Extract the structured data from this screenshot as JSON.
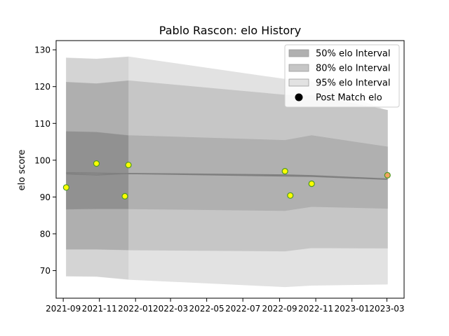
{
  "chart_data": {
    "type": "line",
    "title": "Pablo Rascon: elo History",
    "xlabel": "",
    "ylabel": "elo score",
    "xlim": [
      "2021-08-20",
      "2023-03-30"
    ],
    "ylim": [
      62.5,
      132.5
    ],
    "x_ticks": [
      "2021-09",
      "2021-11",
      "2022-01",
      "2022-03",
      "2022-05",
      "2022-07",
      "2022-09",
      "2022-11",
      "2023-01",
      "2023-03"
    ],
    "y_ticks": [
      70,
      80,
      90,
      100,
      110,
      120,
      130
    ],
    "grid": false,
    "legend_position": "top-right",
    "legend": [
      {
        "label": "50% elo Interval",
        "kind": "band",
        "color": "#b0b0b0"
      },
      {
        "label": "80% elo Interval",
        "kind": "band",
        "color": "#c6c6c6"
      },
      {
        "label": "95% elo Interval",
        "kind": "band",
        "color": "#e2e2e2"
      },
      {
        "label": "Post Match elo",
        "kind": "marker",
        "color": "#000000"
      }
    ],
    "shaded_dates": [
      "2021-09-06",
      "2021-12-20"
    ],
    "series": [
      {
        "kind": "band",
        "level": "95%",
        "color": "#e2e2e2",
        "x": [
          "2021-09-06",
          "2021-10-27",
          "2021-12-20",
          "2022-09-10",
          "2022-10-25",
          "2023-03-02"
        ],
        "lower": [
          68.5,
          68.4,
          67.6,
          65.6,
          66.0,
          66.3
        ],
        "upper": [
          127.8,
          127.5,
          128.1,
          122.0,
          121.3,
          113.4
        ]
      },
      {
        "kind": "band",
        "level": "80%",
        "color": "#c6c6c6",
        "x": [
          "2021-09-06",
          "2021-10-27",
          "2021-12-20",
          "2022-09-10",
          "2022-10-25",
          "2023-03-02"
        ],
        "lower": [
          75.8,
          75.8,
          75.6,
          75.3,
          76.2,
          76.1
        ],
        "upper": [
          121.2,
          120.8,
          121.6,
          117.7,
          117.6,
          113.6
        ]
      },
      {
        "kind": "band",
        "level": "50%",
        "color": "#b0b0b0",
        "x": [
          "2021-09-06",
          "2021-10-27",
          "2021-12-20",
          "2022-09-10",
          "2022-10-25",
          "2023-03-02"
        ],
        "lower": [
          86.7,
          86.8,
          86.8,
          86.3,
          87.4,
          86.9
        ],
        "upper": [
          107.8,
          107.6,
          106.7,
          105.4,
          106.7,
          103.6
        ]
      },
      {
        "kind": "line",
        "name": "elo",
        "color": "#808080",
        "x": [
          "2021-09-06",
          "2021-10-27",
          "2021-12-20",
          "2022-09-10",
          "2022-10-25",
          "2023-03-02"
        ],
        "y": [
          96.3,
          96.0,
          96.4,
          96.0,
          95.8,
          94.9
        ]
      },
      {
        "kind": "line",
        "name": "elo-prior",
        "color": "#808080",
        "x": [
          "2021-09-06",
          "2022-10-25",
          "2023-03-02"
        ],
        "y": [
          96.6,
          95.6,
          94.8
        ]
      },
      {
        "kind": "scatter",
        "name": "Post Match elo",
        "points": [
          {
            "x": "2021-09-06",
            "y": 92.6,
            "color": "#ffff00"
          },
          {
            "x": "2021-10-27",
            "y": 99.1,
            "color": "#ffff00"
          },
          {
            "x": "2021-12-14",
            "y": 90.2,
            "color": "#ffff00"
          },
          {
            "x": "2021-12-20",
            "y": 98.7,
            "color": "#ffff00"
          },
          {
            "x": "2022-09-10",
            "y": 97.0,
            "color": "#ffff00"
          },
          {
            "x": "2022-09-19",
            "y": 90.4,
            "color": "#ffff00"
          },
          {
            "x": "2022-10-25",
            "y": 93.6,
            "color": "#ffff00"
          },
          {
            "x": "2023-03-02",
            "y": 95.9,
            "color": "#f4a460"
          }
        ]
      }
    ]
  }
}
